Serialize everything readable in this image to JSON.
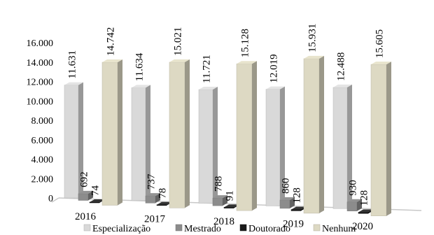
{
  "chart_data": {
    "type": "bar",
    "title": "",
    "xlabel": "",
    "ylabel": "",
    "categories": [
      "2016",
      "2017",
      "2018",
      "2019",
      "2020"
    ],
    "ylim": [
      0,
      16000
    ],
    "yticks": [
      "0",
      "2.000",
      "4.000",
      "6.000",
      "8.000",
      "10.000",
      "12.000",
      "14.000",
      "16.000"
    ],
    "grid": false,
    "legend_position": "bottom",
    "style": "3d-clustered-column",
    "series": [
      {
        "name": "Especialização",
        "values": [
          11631,
          11634,
          11721,
          12019,
          12488
        ],
        "labels": [
          "11.631",
          "11.634",
          "11.721",
          "12.019",
          "12.488"
        ],
        "color": "#d9d9d9"
      },
      {
        "name": "Mestrado",
        "values": [
          692,
          737,
          788,
          860,
          930
        ],
        "labels": [
          "692",
          "737",
          "788",
          "860",
          "930"
        ],
        "color": "#8c8c8c"
      },
      {
        "name": "Doutorado",
        "values": [
          74,
          78,
          91,
          128,
          128
        ],
        "labels": [
          "74",
          "78",
          "91",
          "128",
          "128"
        ],
        "color": "#1a1a1a"
      },
      {
        "name": "Nenhum",
        "values": [
          14742,
          15021,
          15128,
          15931,
          15605
        ],
        "labels": [
          "14.742",
          "15.021",
          "15.128",
          "15.931",
          "15.605"
        ],
        "color": "#ddd9c3"
      }
    ]
  }
}
